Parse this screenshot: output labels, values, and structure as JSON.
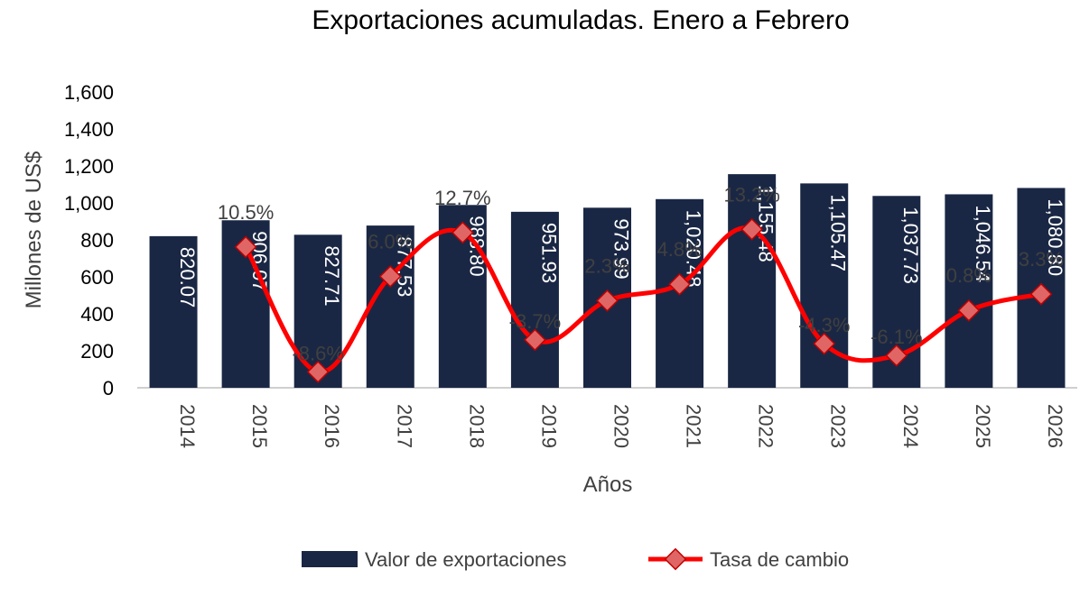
{
  "chart_data": {
    "type": "bar",
    "title": "Exportaciones acumuladas. Enero a Febrero",
    "xlabel": "Años",
    "ylabel": "Millones de US$",
    "ylim": [
      0,
      1600
    ],
    "yticks": [
      "0",
      "200",
      "400",
      "600",
      "800",
      "1,000",
      "1,200",
      "1,400",
      "1,600"
    ],
    "ytick_values": [
      0,
      200,
      400,
      600,
      800,
      1000,
      1200,
      1400,
      1600
    ],
    "categories": [
      "2014",
      "2015",
      "2016",
      "2017",
      "2018",
      "2019",
      "2020",
      "2021",
      "2022",
      "2023",
      "2024",
      "2025",
      "2026"
    ],
    "series": [
      {
        "name": "Valor de exportaciones",
        "type": "bar",
        "color": "#1a2744",
        "values": [
          820.07,
          906.07,
          827.71,
          877.53,
          988.8,
          951.93,
          973.99,
          1020.48,
          1155.48,
          1105.47,
          1037.73,
          1046.54,
          1080.8
        ],
        "labels": [
          "820.07",
          "906.07",
          "827.71",
          "877.53",
          "988.80",
          "951.93",
          "973.99",
          "1,020.48",
          "1,155.48",
          "1,105.47",
          "1,037.73",
          "1,046.54",
          "1,080.80"
        ]
      },
      {
        "name": "Tasa de cambio",
        "type": "line",
        "color": "#ff0000",
        "marker_color": "#e06666",
        "values": [
          null,
          10.5,
          -8.6,
          6.0,
          12.7,
          -3.7,
          2.3,
          4.8,
          13.2,
          -4.3,
          -6.1,
          0.8,
          3.3
        ],
        "labels": [
          "",
          "10.5%",
          "-8.6%",
          "6.0%",
          "12.7%",
          "-3.7%",
          "2.3%",
          "4.8%",
          "13.2%",
          "-4.3%",
          "-6.1%",
          "0.8%",
          "3.3%"
        ]
      }
    ],
    "legend": [
      "Valor de exportaciones",
      "Tasa de cambio"
    ],
    "legend_position": "bottom"
  }
}
